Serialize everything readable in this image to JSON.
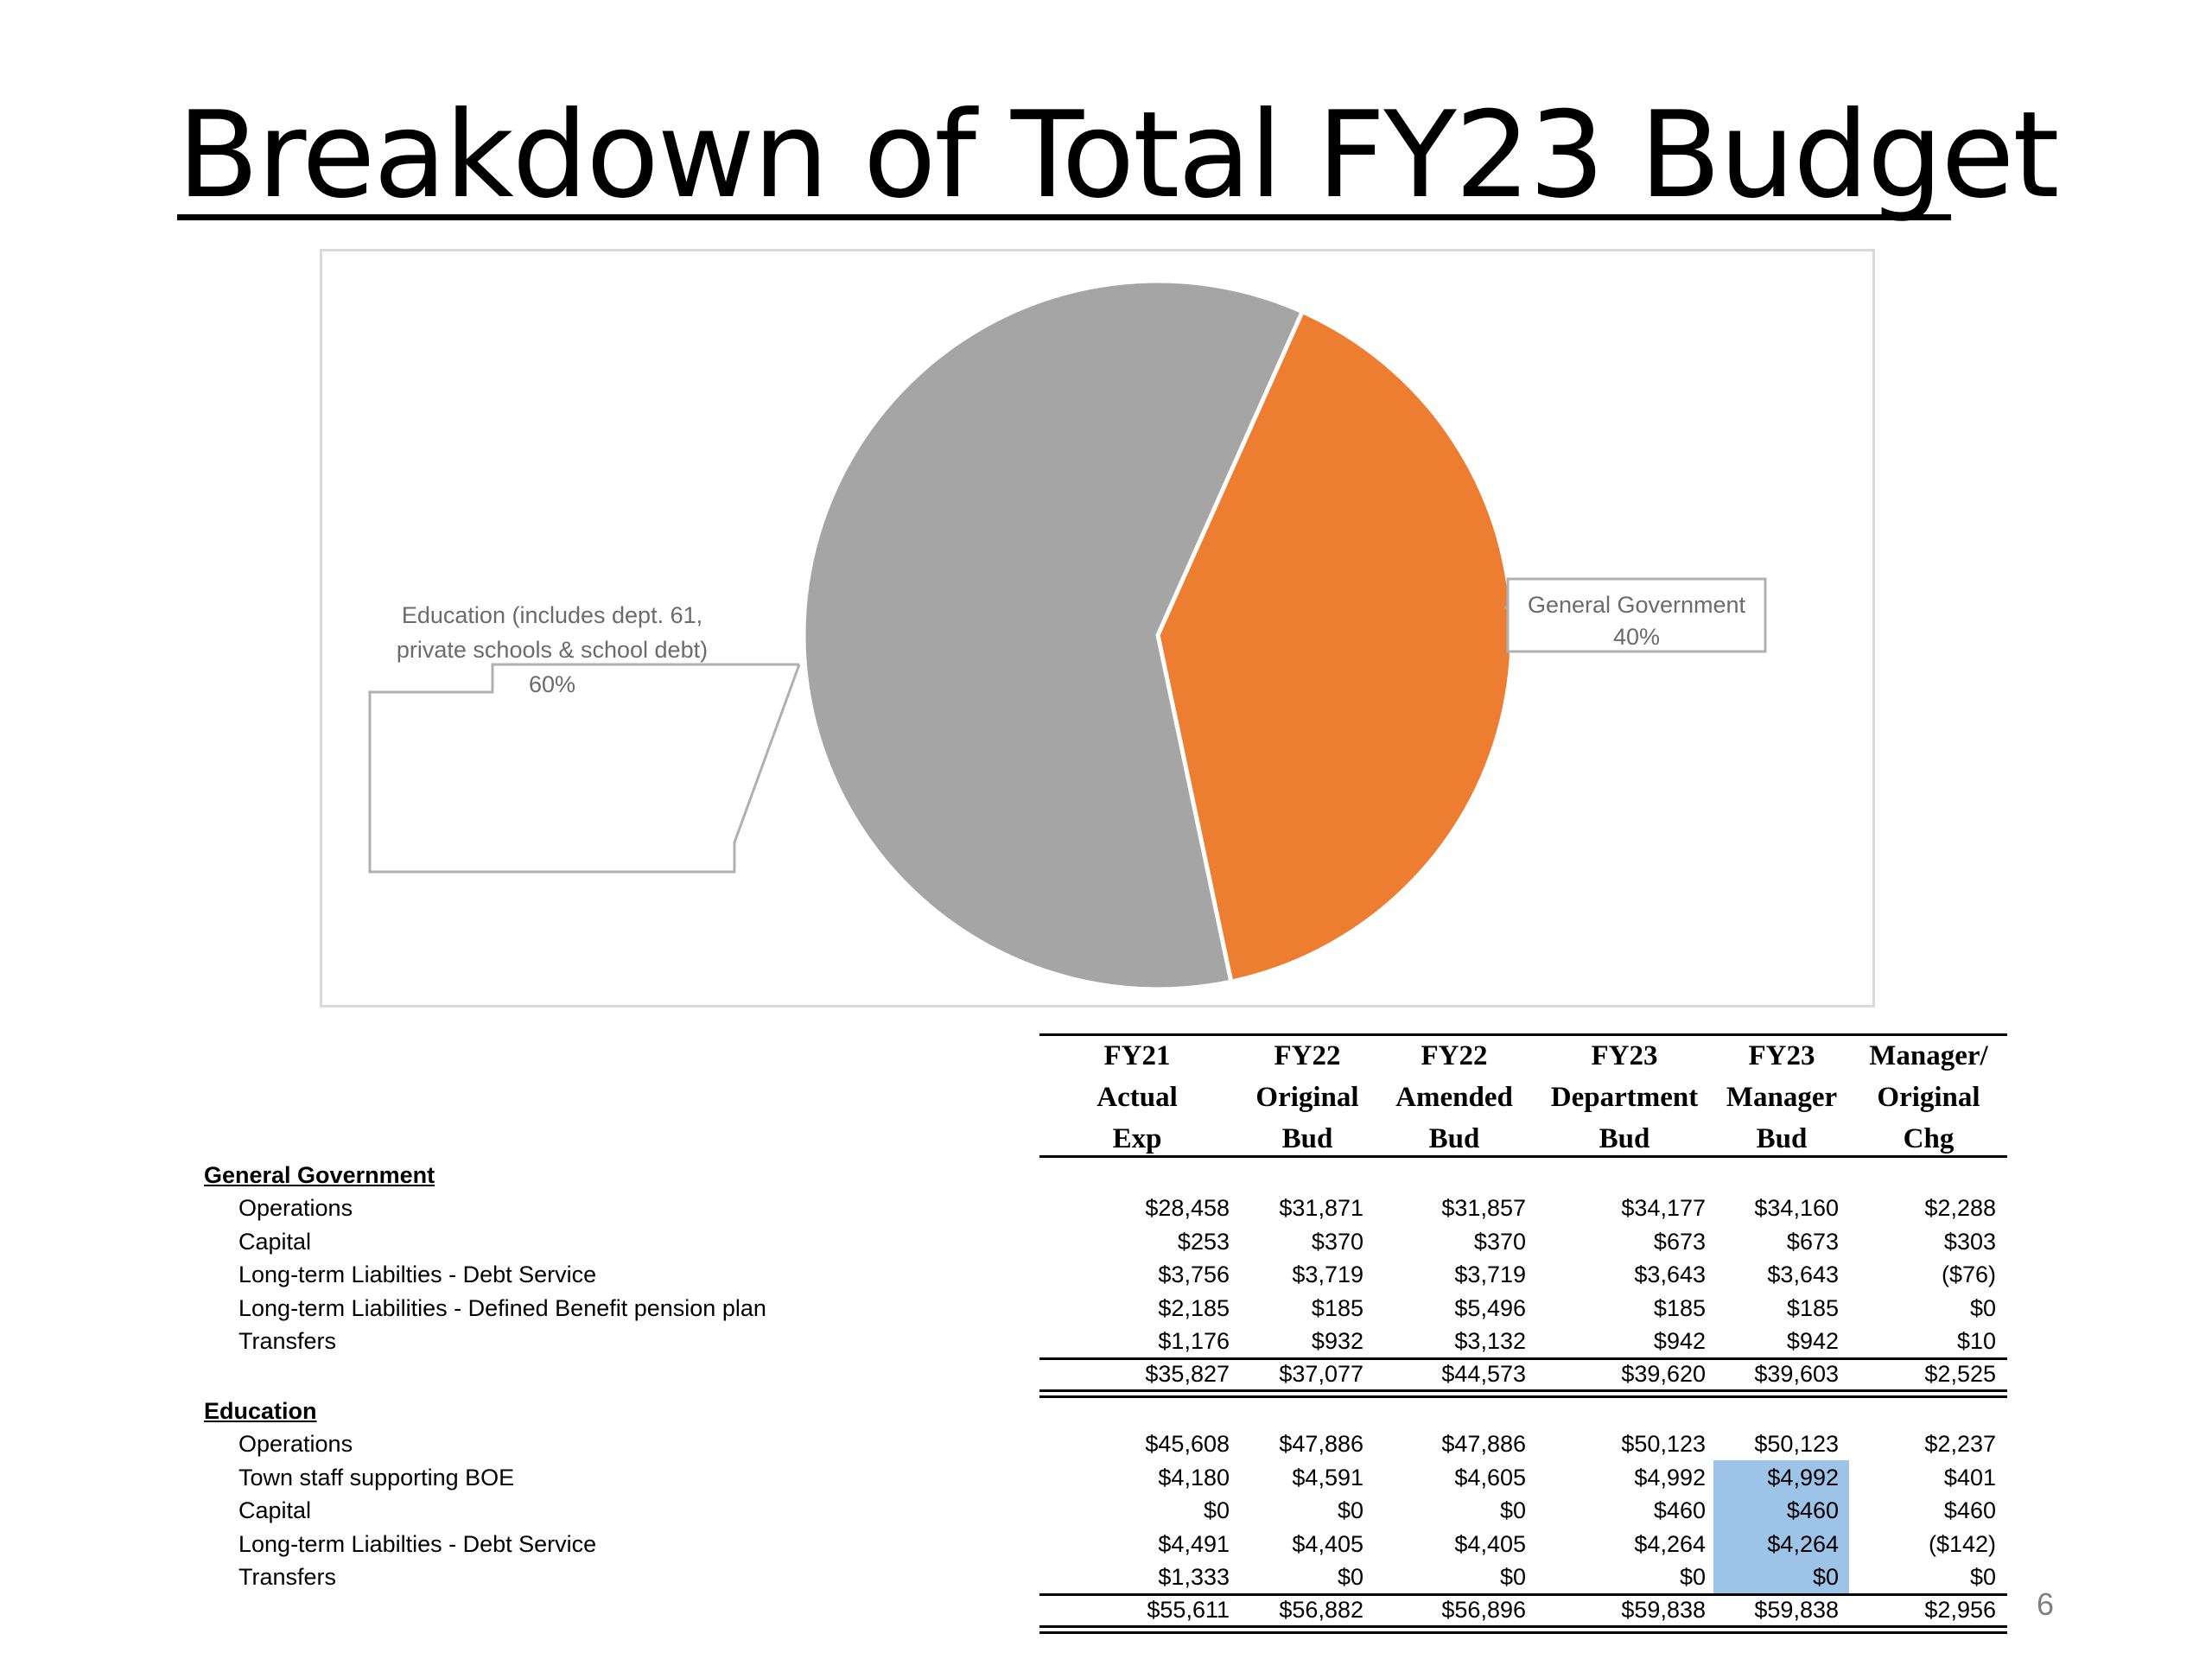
{
  "slide": {
    "title": "Breakdown of Total FY23 Budget",
    "page_number": "6"
  },
  "chart_data": {
    "type": "pie",
    "slices": [
      {
        "label": "Education (includes dept. 61, private schools & school debt)",
        "value": 60,
        "display": "60%",
        "color": "#a5a5a5"
      },
      {
        "label": "General Government",
        "value": 40,
        "display": "40%",
        "color": "#ed7d31"
      }
    ],
    "callouts": {
      "education": [
        "Education (includes dept. 61,",
        "private schools & school debt)",
        "60%"
      ],
      "general_government": [
        "General Government",
        "40%"
      ]
    }
  },
  "table": {
    "columns": [
      [
        "FY21",
        "Actual",
        "Exp"
      ],
      [
        "FY22",
        "Original",
        "Bud"
      ],
      [
        "FY22",
        "Amended",
        "Bud"
      ],
      [
        "FY23",
        "Department",
        "Bud"
      ],
      [
        "FY23",
        "Manager",
        "Bud"
      ],
      [
        "Manager/",
        "Original",
        "Chg"
      ]
    ],
    "sections": [
      {
        "name": "General Government",
        "rows": [
          {
            "label": "Operations",
            "values": [
              "$28,458",
              "$31,871",
              "$31,857",
              "$34,177",
              "$34,160",
              "$2,288"
            ]
          },
          {
            "label": "Capital",
            "values": [
              "$253",
              "$370",
              "$370",
              "$673",
              "$673",
              "$303"
            ]
          },
          {
            "label": "Long-term Liabilties - Debt Service",
            "values": [
              "$3,756",
              "$3,719",
              "$3,719",
              "$3,643",
              "$3,643",
              "($76)"
            ]
          },
          {
            "label": "Long-term Liabilities - Defined Benefit pension plan",
            "values": [
              "$2,185",
              "$185",
              "$5,496",
              "$185",
              "$185",
              "$0"
            ]
          },
          {
            "label": "Transfers",
            "values": [
              "$1,176",
              "$932",
              "$3,132",
              "$942",
              "$942",
              "$10"
            ]
          }
        ],
        "total": [
          "$35,827",
          "$37,077",
          "$44,573",
          "$39,620",
          "$39,603",
          "$2,525"
        ]
      },
      {
        "name": "Education",
        "rows": [
          {
            "label": "Operations",
            "values": [
              "$45,608",
              "$47,886",
              "$47,886",
              "$50,123",
              "$50,123",
              "$2,237"
            ]
          },
          {
            "label": "Town staff supporting BOE",
            "values": [
              "$4,180",
              "$4,591",
              "$4,605",
              "$4,992",
              "$4,992",
              "$401"
            ]
          },
          {
            "label": "Capital",
            "values": [
              "$0",
              "$0",
              "$0",
              "$460",
              "$460",
              "$460"
            ]
          },
          {
            "label": "Long-term Liabilties - Debt Service",
            "values": [
              "$4,491",
              "$4,405",
              "$4,405",
              "$4,264",
              "$4,264",
              "($142)"
            ]
          },
          {
            "label": "Transfers",
            "values": [
              "$1,333",
              "$0",
              "$0",
              "$0",
              "$0",
              "$0"
            ]
          }
        ],
        "total": [
          "$55,611",
          "$56,882",
          "$56,896",
          "$59,838",
          "$59,838",
          "$2,956"
        ]
      }
    ],
    "highlight_color": "#9dc3e6"
  }
}
